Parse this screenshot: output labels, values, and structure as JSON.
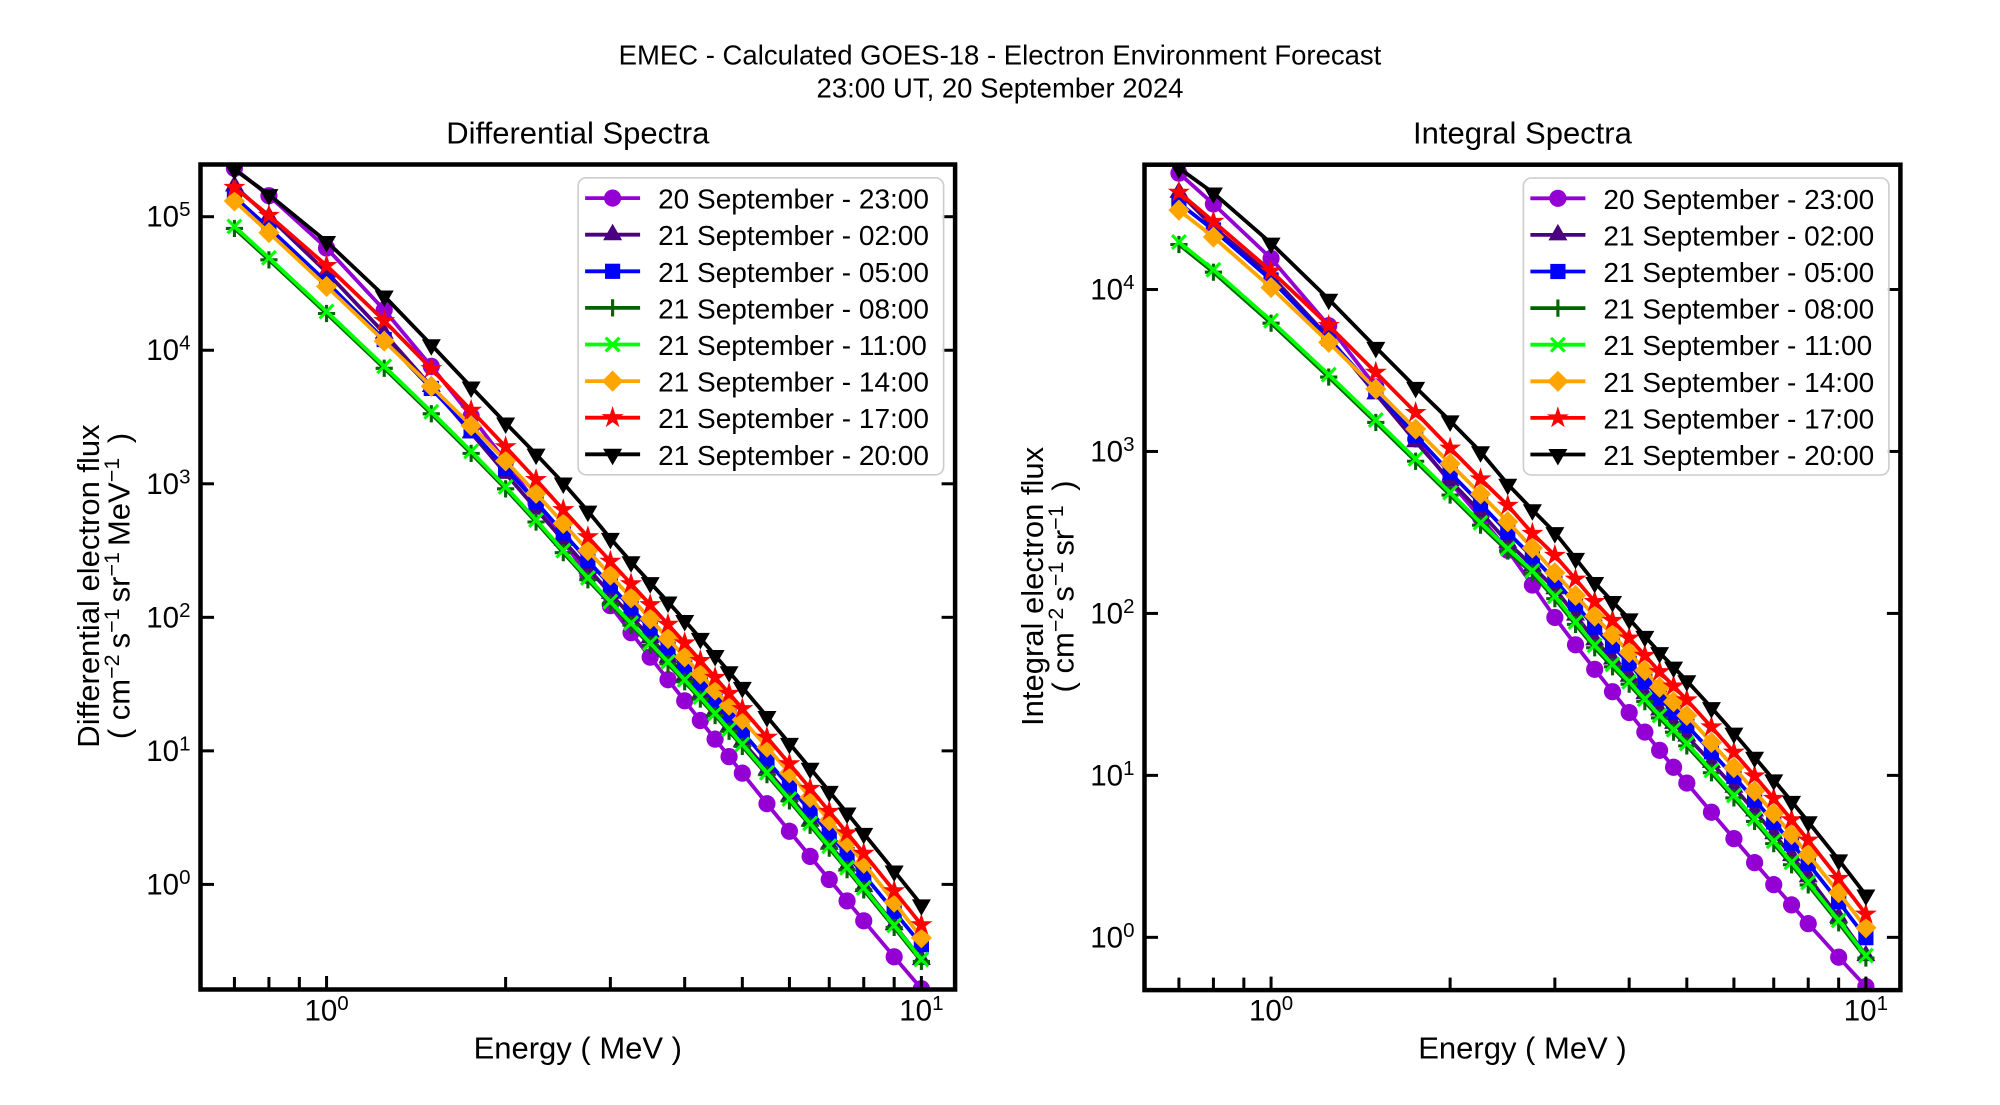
{
  "figure": {
    "background": "#ffffff",
    "suptitle_line1": "EMEC - Calculated GOES-18 - Electron Environment Forecast",
    "suptitle_line2": "23:00 UT, 20 September 2024"
  },
  "chart_data": [
    {
      "type": "line",
      "title": "Differential Spectra",
      "xlabel": "Energy ( MeV )",
      "ylabel_line1": "Differential electron flux",
      "ylabel_line2": "( cm⁻²s⁻¹sr⁻¹MeV⁻¹ )",
      "xscale": "log",
      "yscale": "log",
      "xlim": [
        0.61385,
        11.394
      ],
      "ylim": [
        0.1633,
        246000
      ],
      "axes_rect": [
        200.5,
        164.5,
        955.1,
        989.5
      ],
      "grid": false,
      "legend_position": "upper right",
      "x": [
        0.7,
        0.8,
        1.0,
        1.25,
        1.5,
        1.75,
        2.0,
        2.25,
        2.5,
        2.75,
        3.0,
        3.25,
        3.5,
        3.75,
        4.0,
        4.25,
        4.5,
        4.75,
        5.0,
        5.5,
        6.0,
        6.5,
        7.0,
        7.5,
        8.0,
        9.0,
        10.0
      ],
      "series": [
        {
          "name": "20 September - 23:00",
          "color": "#9400D3",
          "marker": "circle",
          "values": [
            230100.0,
            143600.0,
            58210.0,
            20020.0,
            7572.0,
            3217.0,
            1476.0,
            715.2,
            370.5,
            205.7,
            122.2,
            76.82,
            50.35,
            34.1,
            23.71,
            16.87,
            12.24,
            9.055,
            6.808,
            4.022,
            2.5,
            1.621,
            1.088,
            0.752,
            0.5336,
            0.2868,
            0.1656
          ]
        },
        {
          "name": "21 September - 02:00",
          "color": "#4B0082",
          "marker": "triangle-up",
          "values": [
            169800.0,
            99610.0,
            38460.0,
            13410.0,
            5352.0,
            2406.0,
            1197.0,
            647.8,
            376.7,
            232.9,
            151.2,
            101.8,
            70.63,
            50.16,
            36.31,
            26.76,
            20.07,
            15.27,
            11.77,
            7.21,
            4.571,
            2.984,
            2.001,
            1.374,
            0.9632,
            0.4989,
            0.2742
          ]
        },
        {
          "name": "21 September - 05:00",
          "color": "#0000FF",
          "marker": "square",
          "values": [
            140600.0,
            82490.0,
            32430.0,
            12030.0,
            5178.0,
            2494.0,
            1312.0,
            731.9,
            429.2,
            266.3,
            173.8,
            117.8,
            82.25,
            58.71,
            42.66,
            31.5,
            23.63,
            17.97,
            13.84,
            8.489,
            5.408,
            3.558,
            2.408,
            1.67,
            1.183,
            0.6272,
            0.3532
          ]
        },
        {
          "name": "21 September - 08:00",
          "color": "#006400",
          "marker": "plus",
          "values": [
            81660.0,
            47520.0,
            18840.0,
            7328.0,
            3344.0,
            1689.0,
            916.2,
            517.3,
            304.9,
            190.9,
            126.6,
            87.32,
            61.95,
            44.82,
            32.88,
            24.43,
            18.39,
            14.02,
            10.81,
            6.629,
            4.217,
            2.769,
            1.867,
            1.29,
            0.9092,
            0.4765,
            0.2649
          ]
        },
        {
          "name": "21 September - 11:00",
          "color": "#00FF00",
          "marker": "x",
          "values": [
            84530.0,
            49190.0,
            19500.0,
            7586.0,
            3461.0,
            1748.0,
            948.4,
            535.5,
            315.6,
            197.6,
            131.0,
            90.39,
            64.13,
            46.4,
            34.04,
            25.29,
            19.04,
            14.51,
            11.19,
            6.862,
            4.365,
            2.866,
            1.933,
            1.335,
            0.9411,
            0.4932,
            0.2742
          ]
        },
        {
          "name": "21 September - 14:00",
          "color": "#FFA500",
          "marker": "diamond",
          "values": [
            131200.0,
            76070.0,
            30060.0,
            11710.0,
            5363.0,
            2723.0,
            1486.0,
            848.5,
            505.6,
            316.6,
            207.1,
            140.0,
            97.41,
            69.45,
            50.58,
            37.62,
            28.52,
            21.95,
            17.1,
            10.67,
            6.839,
            4.484,
            3.01,
            2.063,
            1.441,
            0.737,
            0.3981
          ]
        },
        {
          "name": "21 September - 17:00",
          "color": "#FF0000",
          "marker": "star",
          "values": [
            165600.0,
            102200.0,
            43050.0,
            16630.0,
            7278.0,
            3548.0,
            1892.0,
            1074.0,
            639.4,
            400.4,
            262.4,
            178.1,
            124.2,
            88.56,
            64.27,
            47.39,
            35.48,
            26.93,
            20.7,
            12.63,
            7.998,
            5.232,
            3.52,
            2.427,
            1.709,
            0.8947,
            0.4977
          ]
        },
        {
          "name": "21 September - 20:00",
          "color": "#000000",
          "marker": "triangle-down",
          "values": [
            225900.0,
            146300.0,
            65160.0,
            25480.0,
            10990.0,
            5310.0,
            2851.0,
            1666.0,
            1014.0,
            623.7,
            389.9,
            260.6,
            181.9,
            130.3,
            94.62,
            69.49,
            51.77,
            39.09,
            29.88,
            18.07,
            11.38,
            7.415,
            4.975,
            3.424,
            2.409,
            1.261,
            0.7031
          ]
        }
      ]
    },
    {
      "type": "line",
      "title": "Integral Spectra",
      "xlabel": "Energy ( MeV )",
      "ylabel_line1": "Integral electron flux",
      "ylabel_line2": "( cm⁻²s⁻¹sr⁻¹ )",
      "xscale": "log",
      "yscale": "log",
      "xlim": [
        0.61266,
        11.43
      ],
      "ylim": [
        0.4723,
        58960
      ],
      "axes_rect": [
        1144.5,
        164.7,
        1900.4,
        990.1
      ],
      "grid": false,
      "legend_position": "upper right",
      "x": [
        0.7,
        0.8,
        1.0,
        1.25,
        1.5,
        1.75,
        2.0,
        2.25,
        2.5,
        2.75,
        3.0,
        3.25,
        3.5,
        3.75,
        4.0,
        4.25,
        4.5,
        4.75,
        5.0,
        5.5,
        6.0,
        6.5,
        7.0,
        7.5,
        8.0,
        9.0,
        10.0
      ],
      "series": [
        {
          "name": "20 September - 23:00",
          "color": "#9400D3",
          "marker": "circle",
          "values": [
            52240.0,
            33730.0,
            15560.0,
            5977.0,
            2507.0,
            1194.0,
            645.7,
            391.3,
            245.5,
            149.6,
            94.41,
            63.98,
            45.18,
            32.87,
            24.43,
            18.5,
            14.27,
            11.22,
            8.963,
            5.921,
            4.069,
            2.892,
            2.115,
            1.586,
            1.215,
            0.7537,
            0.4966
          ]
        },
        {
          "name": "21 September - 02:00",
          "color": "#4B0082",
          "marker": "triangle-up",
          "values": [
            39810.0,
            24320.0,
            12160.0,
            5061.0,
            2268.0,
            1149.0,
            660.7,
            422.7,
            274.8,
            196.3,
            141.9,
            97.53,
            68.71,
            52.35,
            40.93,
            31.89,
            25.35,
            20.96,
            17.46,
            12.02,
            8.441,
            6.027,
            4.364,
            3.197,
            2.367,
            1.331,
            0.7709
          ]
        },
        {
          "name": "21 September - 05:00",
          "color": "#0000FF",
          "marker": "square",
          "values": [
            34200.0,
            23320.0,
            11460.0,
            4984.0,
            2366.0,
            1254.0,
            739.6,
            475.3,
            316.2,
            223.4,
            161.4,
            113.9,
            82.22,
            62.92,
            49.09,
            38.02,
            29.99,
            24.59,
            20.37,
            13.98,
            9.834,
            7.056,
            5.15,
            3.812,
            2.858,
            1.658,
            0.9954
          ]
        },
        {
          "name": "21 September - 08:00",
          "color": "#006400",
          "marker": "plus",
          "values": [
            18960.0,
            12790.0,
            6194.0,
            2879.0,
            1511.0,
            869.9,
            538.3,
            350.8,
            242.7,
            177.0,
            123.3,
            85.56,
            61.37,
            46.81,
            36.56,
            28.55,
            22.64,
            18.48,
            15.21,
            10.38,
            7.263,
            5.198,
            3.79,
            2.807,
            2.107,
            1.229,
            0.7447
          ]
        },
        {
          "name": "21 September - 11:00",
          "color": "#00FF00",
          "marker": "x",
          "values": [
            19630.0,
            13240.0,
            6412.0,
            2980.0,
            1564.0,
            900.5,
            557.2,
            363.1,
            251.2,
            183.2,
            127.6,
            88.57,
            63.53,
            48.46,
            37.84,
            29.55,
            23.44,
            19.13,
            15.74,
            10.74,
            7.518,
            5.381,
            3.923,
            2.906,
            2.181,
            1.272,
            0.7709
          ]
        },
        {
          "name": "21 September - 14:00",
          "color": "#FFA500",
          "marker": "diamond",
          "values": [
            30900.0,
            21090.0,
            10280.0,
            4720.0,
            2431.0,
            1376.0,
            841.4,
            546.5,
            368.1,
            253.3,
            178.3,
            129.1,
            96.16,
            73.81,
            57.41,
            44.46,
            34.99,
            28.5,
            23.44,
            15.97,
            11.17,
            7.99,
            5.822,
            4.311,
            3.236,
            1.889,
            1.146
          ]
        },
        {
          "name": "21 September - 17:00",
          "color": "#FF0000",
          "marker": "star",
          "values": [
            39810.0,
            26300.0,
            13000.0,
            5991.0,
            3079.0,
            1738.0,
            1047.0,
            676.1,
            464.5,
            311.9,
            228.0,
            162.7,
            118.3,
            90.41,
            70.47,
            55.03,
            43.65,
            35.58,
            29.24,
            19.89,
            13.89,
            9.911,
            7.204,
            5.319,
            3.981,
            2.308,
            1.39
          ]
        },
        {
          "name": "21 September - 20:00",
          "color": "#000000",
          "marker": "triangle-down",
          "values": [
            56230.0,
            39450.0,
            19320.0,
            8702.0,
            4395.0,
            2489.0,
            1545.0,
            995.4,
            627.6,
            436.5,
            315.5,
            218.7,
            155.2,
            118.4,
            92.47,
            72.21,
            57.28,
            46.64,
            38.37,
            26.2,
            18.24,
            12.95,
            9.378,
            6.913,
            5.172,
            3.008,
            1.824
          ]
        }
      ]
    }
  ]
}
